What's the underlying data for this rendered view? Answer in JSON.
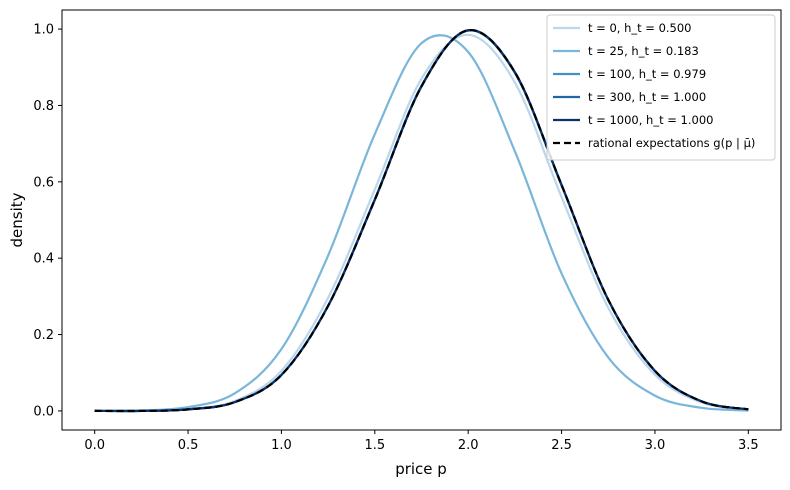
{
  "chart_data": {
    "type": "line",
    "title": "",
    "xlabel": "price p",
    "ylabel": "density",
    "xlim": [
      -0.175,
      3.675
    ],
    "ylim": [
      -0.05,
      1.05
    ],
    "xticks": [
      0.0,
      0.5,
      1.0,
      1.5,
      2.0,
      2.5,
      3.0,
      3.5
    ],
    "yticks": [
      0.0,
      0.2,
      0.4,
      0.6,
      0.8,
      1.0
    ],
    "xtick_labels": [
      "0.0",
      "0.5",
      "1.0",
      "1.5",
      "2.0",
      "2.5",
      "3.0",
      "3.5"
    ],
    "ytick_labels": [
      "0.0",
      "0.2",
      "0.4",
      "0.6",
      "0.8",
      "1.0"
    ],
    "grid": false,
    "legend_position": "top-right",
    "x": [
      0.0,
      0.25,
      0.5,
      0.75,
      1.0,
      1.25,
      1.5,
      1.75,
      2.0,
      2.25,
      2.5,
      2.75,
      3.0,
      3.25,
      3.5
    ],
    "series": [
      {
        "name": "t = 0, h_t = 0.500",
        "color": "#bcd6ea",
        "dashed": false,
        "values": [
          0.0,
          0.0,
          0.005,
          0.026,
          0.105,
          0.296,
          0.58,
          0.87,
          0.985,
          0.86,
          0.56,
          0.27,
          0.095,
          0.022,
          0.003
        ]
      },
      {
        "name": "t = 25, h_t = 0.183",
        "color": "#7ab6d9",
        "dashed": false,
        "values": [
          0.0,
          0.001,
          0.01,
          0.046,
          0.162,
          0.407,
          0.725,
          0.963,
          0.94,
          0.68,
          0.36,
          0.14,
          0.04,
          0.008,
          0.001
        ]
      },
      {
        "name": "t = 100, h_t = 0.979",
        "color": "#4191c6",
        "dashed": false,
        "values": [
          0.0,
          0.0,
          0.004,
          0.023,
          0.095,
          0.276,
          0.555,
          0.852,
          0.996,
          0.885,
          0.59,
          0.29,
          0.104,
          0.025,
          0.004
        ]
      },
      {
        "name": "t = 300, h_t = 1.000",
        "color": "#1f65a8",
        "dashed": false,
        "values": [
          0.0,
          0.0,
          0.004,
          0.023,
          0.094,
          0.275,
          0.553,
          0.85,
          0.997,
          0.887,
          0.592,
          0.291,
          0.105,
          0.025,
          0.004
        ]
      },
      {
        "name": "t = 1000, h_t = 1.000",
        "color": "#0d2f6b",
        "dashed": false,
        "values": [
          0.0,
          0.0,
          0.004,
          0.023,
          0.094,
          0.275,
          0.553,
          0.85,
          0.997,
          0.887,
          0.592,
          0.291,
          0.105,
          0.025,
          0.004
        ]
      },
      {
        "name": "rational expectations g(p | μ̄)",
        "color": "#000000",
        "dashed": true,
        "values": [
          0.0,
          0.0,
          0.004,
          0.023,
          0.094,
          0.275,
          0.553,
          0.85,
          0.997,
          0.887,
          0.592,
          0.291,
          0.105,
          0.025,
          0.004
        ]
      }
    ]
  }
}
